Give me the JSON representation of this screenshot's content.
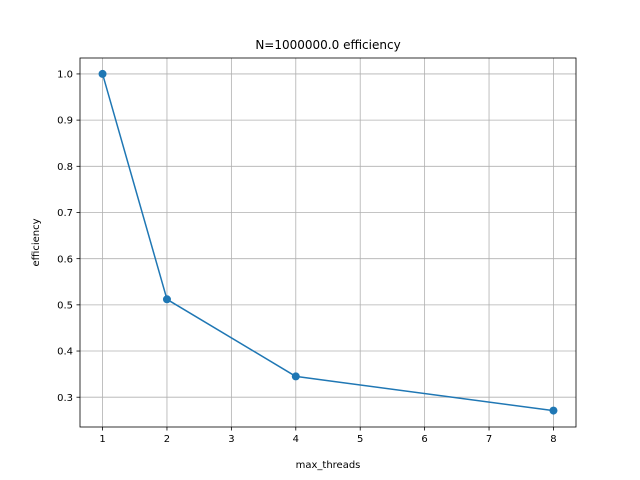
{
  "chart_data": {
    "type": "line",
    "title": "N=1000000.0 efficiency",
    "xlabel": "max_threads",
    "ylabel": "efficiency",
    "x": [
      1,
      2,
      4,
      8
    ],
    "series": [
      {
        "values": [
          1.0,
          0.512,
          0.345,
          0.271
        ],
        "color": "#1f77b4",
        "marker": "circle"
      }
    ],
    "xlim": [
      0.65,
      8.35
    ],
    "ylim": [
      0.2355,
      1.0345
    ],
    "xticks": [
      1,
      2,
      3,
      4,
      5,
      6,
      7,
      8
    ],
    "yticks": [
      0.3,
      0.4,
      0.5,
      0.6,
      0.7,
      0.8,
      0.9,
      1.0
    ],
    "xtick_labels": [
      "1",
      "2",
      "3",
      "4",
      "5",
      "6",
      "7",
      "8"
    ],
    "ytick_labels": [
      "0.3",
      "0.4",
      "0.5",
      "0.6",
      "0.7",
      "0.8",
      "0.9",
      "1.0"
    ],
    "grid": true,
    "legend": null
  }
}
